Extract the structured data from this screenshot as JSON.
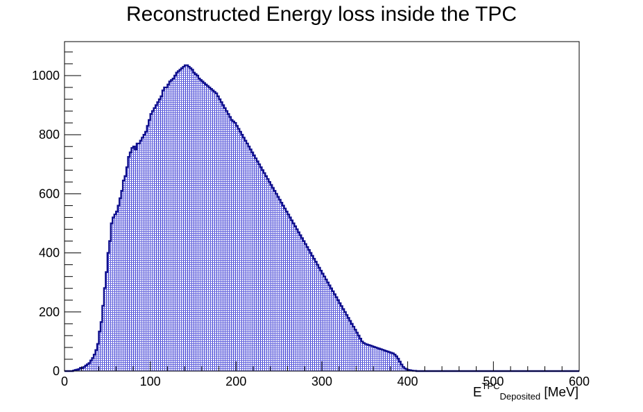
{
  "chart_data": {
    "type": "bar",
    "style": "histogram",
    "title": "Reconstructed Energy loss inside the TPC",
    "xlabel": {
      "base": "E",
      "superscript": "TPC",
      "subscript": "Deposited",
      "unit": "[MeV]"
    },
    "ylabel": "",
    "xlim": [
      0,
      600
    ],
    "ylim": [
      0,
      1115
    ],
    "x_ticks": [
      "0",
      "100",
      "200",
      "300",
      "400",
      "500",
      "600"
    ],
    "y_ticks": [
      "0",
      "200",
      "400",
      "600",
      "800",
      "1000"
    ],
    "x_tick_values": [
      0,
      100,
      200,
      300,
      400,
      500,
      600
    ],
    "y_tick_values": [
      0,
      200,
      400,
      600,
      800,
      1000
    ],
    "grid": false,
    "legend": "none",
    "colors": {
      "line": "#0f0f8c",
      "fill": "#3a3ad0",
      "frame": "#000000"
    },
    "bin_width": 2,
    "bin_start": 0,
    "values": [
      0,
      0,
      0,
      0,
      0,
      2,
      4,
      5,
      7,
      11,
      10,
      14,
      19,
      23,
      27,
      36,
      44,
      56,
      71,
      92,
      134,
      166,
      221,
      281,
      335,
      400,
      440,
      500,
      520,
      530,
      540,
      560,
      585,
      610,
      645,
      660,
      690,
      725,
      740,
      755,
      760,
      750,
      770,
      770,
      780,
      790,
      800,
      810,
      830,
      850,
      870,
      880,
      890,
      900,
      910,
      920,
      930,
      950,
      960,
      960,
      970,
      980,
      985,
      990,
      1000,
      1010,
      1015,
      1020,
      1025,
      1030,
      1035,
      1035,
      1030,
      1025,
      1020,
      1010,
      1005,
      1000,
      990,
      985,
      980,
      975,
      970,
      965,
      960,
      955,
      950,
      945,
      940,
      930,
      920,
      910,
      900,
      890,
      880,
      870,
      860,
      850,
      845,
      840,
      830,
      820,
      810,
      800,
      790,
      780,
      770,
      760,
      750,
      740,
      730,
      720,
      710,
      700,
      690,
      680,
      670,
      660,
      650,
      640,
      630,
      620,
      610,
      600,
      590,
      580,
      570,
      560,
      550,
      540,
      530,
      520,
      510,
      500,
      490,
      480,
      470,
      460,
      450,
      440,
      430,
      420,
      410,
      400,
      390,
      380,
      370,
      360,
      350,
      340,
      330,
      320,
      310,
      300,
      290,
      280,
      270,
      260,
      250,
      240,
      230,
      220,
      210,
      200,
      190,
      180,
      170,
      160,
      150,
      140,
      130,
      120,
      110,
      100,
      95,
      92,
      90,
      88,
      86,
      84,
      82,
      80,
      78,
      76,
      74,
      72,
      70,
      68,
      66,
      64,
      62,
      60,
      56,
      50,
      42,
      32,
      22,
      14,
      9,
      6,
      4,
      3,
      2,
      1,
      1,
      0,
      0,
      0,
      0,
      0,
      0,
      0,
      0,
      0,
      0,
      0,
      0,
      0,
      0,
      0,
      0,
      0,
      0,
      0,
      0,
      0,
      0,
      0,
      0,
      0,
      0,
      0,
      0,
      0,
      0,
      0,
      0,
      0,
      0,
      0,
      0,
      0,
      0,
      0,
      0,
      0,
      0,
      0,
      0,
      0,
      0,
      0,
      0,
      0,
      0,
      0,
      0,
      0,
      0,
      0,
      0,
      0,
      0,
      0,
      0,
      0,
      0,
      0,
      0,
      0,
      0,
      0,
      0,
      0,
      0,
      0,
      0,
      0,
      0,
      0,
      0,
      0,
      0,
      0,
      0,
      0,
      0,
      0,
      0,
      0,
      0,
      0,
      0,
      0,
      0,
      0,
      0,
      0,
      0,
      0
    ]
  }
}
